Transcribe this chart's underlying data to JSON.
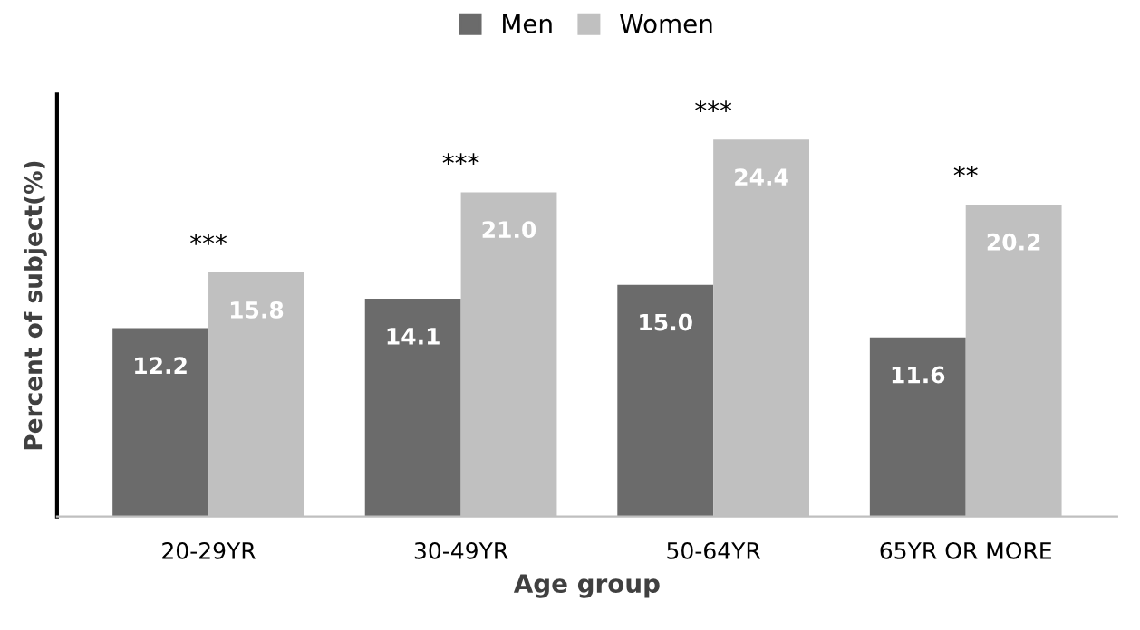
{
  "chart_data": {
    "type": "bar",
    "xlabel": "Age group",
    "ylabel": "Percent of subject(%)",
    "categories": [
      "20-29YR",
      "30-49YR",
      "50-64YR",
      "65YR OR MORE"
    ],
    "series": [
      {
        "name": "Men",
        "color": "#6b6b6b",
        "values": [
          12.2,
          14.1,
          15.0,
          11.6
        ],
        "value_labels": [
          "12.2",
          "14.1",
          "15.0",
          "11.6"
        ]
      },
      {
        "name": "Women",
        "color": "#c0c0c0",
        "values": [
          15.8,
          21.0,
          24.4,
          20.2
        ],
        "value_labels": [
          "15.8",
          "21.0",
          "24.4",
          "20.2"
        ]
      }
    ],
    "annotations": [
      "***",
      "***",
      "***",
      "**"
    ],
    "legend": "top",
    "grid": false
  }
}
